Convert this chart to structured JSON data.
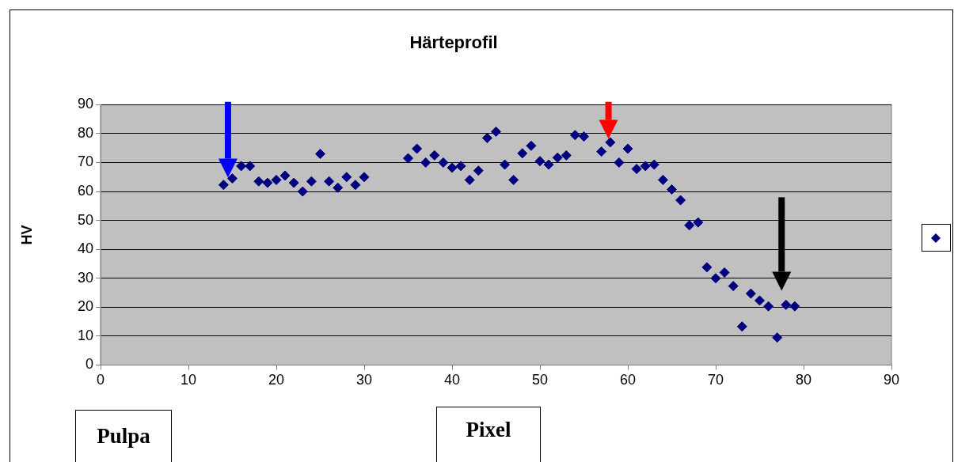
{
  "chart_data": {
    "type": "scatter",
    "title": "Härteprofil",
    "xlabel": "Pixel",
    "ylabel": "HV",
    "annotations": [
      "Pulpa"
    ],
    "series": [
      {
        "color": "#000080",
        "x": [
          14,
          15,
          16,
          17,
          18,
          19,
          20,
          21,
          22,
          23,
          24,
          25,
          26,
          27,
          28,
          29,
          30,
          35,
          36,
          37,
          38,
          39,
          40,
          41,
          42,
          43,
          44,
          45,
          46,
          47,
          48,
          49,
          50,
          51,
          52,
          53,
          54,
          55,
          57,
          58,
          59,
          60,
          61,
          62,
          63,
          64,
          65,
          66,
          67,
          68,
          69,
          70,
          71,
          72,
          73,
          74,
          75,
          76,
          77,
          78,
          79
        ],
        "values": [
          62.3,
          64.5,
          68.8,
          68.8,
          63.5,
          63,
          64,
          65.5,
          63,
          60,
          63.5,
          73,
          63.5,
          61.3,
          65,
          62.3,
          65,
          71.5,
          74.8,
          70,
          72.5,
          70,
          68.2,
          68.8,
          64,
          67.2,
          78.5,
          80.7,
          69.3,
          64,
          73.2,
          75.8,
          70.5,
          69.3,
          71.7,
          72.5,
          79.5,
          79,
          73.8,
          77,
          70,
          74.8,
          67.8,
          68.8,
          69.3,
          64,
          60.7,
          57,
          48.3,
          49.3,
          33.8,
          30,
          32,
          27.3,
          13.3,
          24.7,
          22.3,
          20.3,
          9.5,
          20.8,
          20.3
        ]
      }
    ],
    "xlim": [
      0,
      90
    ],
    "xticks": [
      0,
      10,
      20,
      30,
      40,
      50,
      60,
      70,
      80,
      90
    ],
    "ylim": [
      0,
      90
    ],
    "yticks": [
      0,
      10,
      20,
      30,
      40,
      50,
      60,
      70,
      80,
      90
    ],
    "grid": "y",
    "marker": "diamond"
  }
}
